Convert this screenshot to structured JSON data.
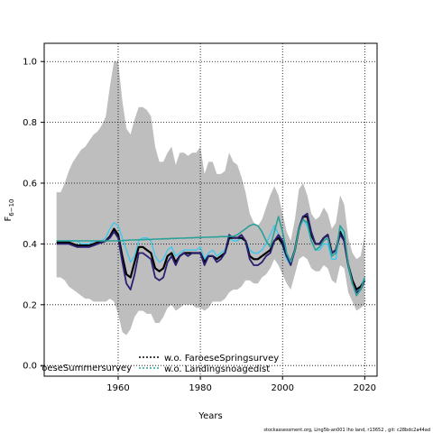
{
  "chart_data": {
    "type": "line",
    "xlabel": "Years",
    "ylabel_main": "F",
    "ylabel_sub": "6−10",
    "xlim": [
      1942,
      2023
    ],
    "ylim": [
      -0.035,
      1.06
    ],
    "xticks": [
      1960,
      1980,
      2000,
      2020
    ],
    "yticks": [
      0.0,
      0.2,
      0.4,
      0.6,
      0.8,
      1.0
    ],
    "ytick_labels": [
      "0.0",
      "0.2",
      "0.4",
      "0.6",
      "0.8",
      "1.0"
    ],
    "grid": "dotted",
    "band": {
      "color": "#bebebe",
      "x": [
        1945,
        1946,
        1947,
        1948,
        1949,
        1950,
        1951,
        1952,
        1953,
        1954,
        1955,
        1956,
        1957,
        1958,
        1959,
        1960,
        1961,
        1962,
        1963,
        1964,
        1965,
        1966,
        1967,
        1968,
        1969,
        1970,
        1971,
        1972,
        1973,
        1974,
        1975,
        1976,
        1977,
        1978,
        1979,
        1980,
        1981,
        1982,
        1983,
        1984,
        1985,
        1986,
        1987,
        1988,
        1989,
        1990,
        1991,
        1992,
        1993,
        1994,
        1995,
        1996,
        1997,
        1998,
        1999,
        2000,
        2001,
        2002,
        2003,
        2004,
        2005,
        2006,
        2007,
        2008,
        2009,
        2010,
        2011,
        2012,
        2013,
        2014,
        2015,
        2016,
        2017,
        2018,
        2019,
        2020
      ],
      "upper": [
        0.57,
        0.57,
        0.6,
        0.64,
        0.67,
        0.69,
        0.71,
        0.72,
        0.74,
        0.76,
        0.77,
        0.79,
        0.82,
        0.92,
        1.0,
        1.0,
        0.87,
        0.78,
        0.76,
        0.81,
        0.85,
        0.85,
        0.84,
        0.82,
        0.72,
        0.67,
        0.67,
        0.7,
        0.72,
        0.66,
        0.7,
        0.7,
        0.69,
        0.7,
        0.7,
        0.72,
        0.63,
        0.67,
        0.67,
        0.63,
        0.63,
        0.64,
        0.7,
        0.67,
        0.66,
        0.62,
        0.57,
        0.5,
        0.47,
        0.46,
        0.48,
        0.52,
        0.56,
        0.59,
        0.56,
        0.5,
        0.44,
        0.41,
        0.48,
        0.58,
        0.6,
        0.56,
        0.5,
        0.48,
        0.49,
        0.52,
        0.5,
        0.45,
        0.47,
        0.56,
        0.53,
        0.42,
        0.37,
        0.35,
        0.36,
        0.43
      ],
      "lower": [
        0.29,
        0.29,
        0.28,
        0.26,
        0.25,
        0.24,
        0.23,
        0.22,
        0.22,
        0.21,
        0.21,
        0.21,
        0.21,
        0.22,
        0.21,
        0.17,
        0.11,
        0.1,
        0.12,
        0.16,
        0.18,
        0.18,
        0.17,
        0.17,
        0.14,
        0.14,
        0.16,
        0.19,
        0.2,
        0.18,
        0.19,
        0.2,
        0.2,
        0.2,
        0.19,
        0.19,
        0.18,
        0.19,
        0.21,
        0.21,
        0.21,
        0.22,
        0.24,
        0.25,
        0.25,
        0.26,
        0.28,
        0.28,
        0.27,
        0.27,
        0.29,
        0.3,
        0.32,
        0.35,
        0.33,
        0.3,
        0.27,
        0.25,
        0.3,
        0.35,
        0.36,
        0.35,
        0.32,
        0.31,
        0.31,
        0.33,
        0.32,
        0.28,
        0.27,
        0.33,
        0.32,
        0.24,
        0.21,
        0.18,
        0.19,
        0.2
      ]
    },
    "x": [
      1945,
      1946,
      1947,
      1948,
      1949,
      1950,
      1951,
      1952,
      1953,
      1954,
      1955,
      1956,
      1957,
      1958,
      1959,
      1960,
      1961,
      1962,
      1963,
      1964,
      1965,
      1966,
      1967,
      1968,
      1969,
      1970,
      1971,
      1972,
      1973,
      1974,
      1975,
      1976,
      1977,
      1978,
      1979,
      1980,
      1981,
      1982,
      1983,
      1984,
      1985,
      1986,
      1987,
      1988,
      1989,
      1990,
      1991,
      1992,
      1993,
      1994,
      1995,
      1996,
      1997,
      1998,
      1999,
      2000,
      2001,
      2002,
      2003,
      2004,
      2005,
      2006,
      2007,
      2008,
      2009,
      2010,
      2011,
      2012,
      2013,
      2014,
      2015,
      2016,
      2017,
      2018,
      2019,
      2020
    ],
    "series": [
      {
        "color": "#3ec8ee",
        "width": 1.4,
        "dash": "",
        "values": [
          0.41,
          0.41,
          0.41,
          0.41,
          0.41,
          0.41,
          0.4,
          0.4,
          0.4,
          0.41,
          0.41,
          0.41,
          0.42,
          0.45,
          0.47,
          0.46,
          0.42,
          0.38,
          0.34,
          0.36,
          0.41,
          0.42,
          0.42,
          0.41,
          0.36,
          0.34,
          0.35,
          0.38,
          0.39,
          0.36,
          0.37,
          0.38,
          0.38,
          0.38,
          0.38,
          0.39,
          0.35,
          0.37,
          0.38,
          0.36,
          0.37,
          0.38,
          0.42,
          0.41,
          0.41,
          0.42,
          0.41,
          0.38,
          0.37,
          0.37,
          0.38,
          0.4,
          0.43,
          0.46,
          0.43,
          0.39,
          0.35,
          0.33,
          0.38,
          0.45,
          0.48,
          0.46,
          0.41,
          0.38,
          0.38,
          0.4,
          0.4,
          0.35,
          0.35,
          0.45,
          0.42,
          0.32,
          0.27,
          0.24,
          0.26,
          0.29
        ]
      },
      {
        "color": "#000000",
        "width": 2.2,
        "dash": "",
        "values": [
          0.405,
          0.405,
          0.405,
          0.405,
          0.4,
          0.395,
          0.395,
          0.395,
          0.395,
          0.4,
          0.405,
          0.405,
          0.41,
          0.425,
          0.45,
          0.43,
          0.36,
          0.3,
          0.29,
          0.34,
          0.39,
          0.39,
          0.38,
          0.37,
          0.32,
          0.31,
          0.32,
          0.36,
          0.37,
          0.34,
          0.36,
          0.37,
          0.37,
          0.37,
          0.37,
          0.37,
          0.34,
          0.36,
          0.36,
          0.35,
          0.36,
          0.37,
          0.42,
          0.42,
          0.42,
          0.42,
          0.41,
          0.36,
          0.35,
          0.35,
          0.36,
          0.37,
          0.38,
          0.41,
          0.42,
          0.4,
          0.36,
          0.34,
          0.38,
          0.45,
          0.49,
          0.49,
          0.43,
          0.4,
          0.4,
          0.42,
          0.43,
          0.37,
          0.38,
          0.44,
          0.41,
          0.33,
          0.28,
          0.25,
          0.26,
          0.28
        ]
      },
      {
        "color": "#2a1f73",
        "width": 1.8,
        "dash": "",
        "values": [
          0.4,
          0.4,
          0.4,
          0.4,
          0.395,
          0.39,
          0.39,
          0.39,
          0.39,
          0.395,
          0.4,
          0.405,
          0.41,
          0.42,
          0.44,
          0.42,
          0.34,
          0.27,
          0.25,
          0.3,
          0.37,
          0.37,
          0.36,
          0.35,
          0.29,
          0.28,
          0.29,
          0.34,
          0.36,
          0.33,
          0.36,
          0.37,
          0.36,
          0.37,
          0.37,
          0.37,
          0.33,
          0.36,
          0.36,
          0.34,
          0.35,
          0.37,
          0.43,
          0.42,
          0.42,
          0.43,
          0.41,
          0.35,
          0.33,
          0.33,
          0.34,
          0.36,
          0.37,
          0.41,
          0.43,
          0.41,
          0.36,
          0.33,
          0.38,
          0.45,
          0.49,
          0.5,
          0.44,
          0.4,
          0.4,
          0.42,
          0.43,
          0.37,
          0.38,
          0.43,
          0.41,
          0.33,
          0.27,
          0.24,
          0.25,
          0.28
        ]
      },
      {
        "color": "#2aa197",
        "width": 1.6,
        "dash": "",
        "values": [
          0.41,
          0.41,
          0.41,
          0.41,
          0.41,
          0.41,
          0.41,
          0.41,
          0.41,
          0.41,
          0.41,
          0.41,
          0.41,
          0.41,
          0.41,
          0.41,
          0.411,
          0.412,
          0.413,
          0.413,
          0.414,
          0.414,
          0.415,
          0.415,
          0.416,
          0.416,
          0.417,
          0.417,
          0.418,
          0.418,
          0.419,
          0.419,
          0.42,
          0.42,
          0.421,
          0.421,
          0.422,
          0.422,
          0.423,
          0.423,
          0.424,
          0.424,
          0.425,
          0.425,
          0.43,
          0.44,
          0.45,
          0.46,
          0.465,
          0.46,
          0.44,
          0.41,
          0.39,
          0.44,
          0.49,
          0.44,
          0.37,
          0.34,
          0.38,
          0.45,
          0.48,
          0.47,
          0.41,
          0.38,
          0.39,
          0.41,
          0.42,
          0.36,
          0.37,
          0.46,
          0.44,
          0.33,
          0.27,
          0.23,
          0.25,
          0.29
        ]
      }
    ],
    "legend": [
      {
        "label": "w.o. FaroeseSpringsurvey",
        "color": "#000000",
        "style": "dotted"
      },
      {
        "label": "w.o. Landingsnoagedist",
        "color": "#2aa197",
        "style": "dotted"
      }
    ],
    "clipped_legend_label": "FaroeseSummersurvey",
    "footer": "stockassessment.org, Ling5b-an001 lho land, r13652 , git: c28bdc2a44ad"
  }
}
